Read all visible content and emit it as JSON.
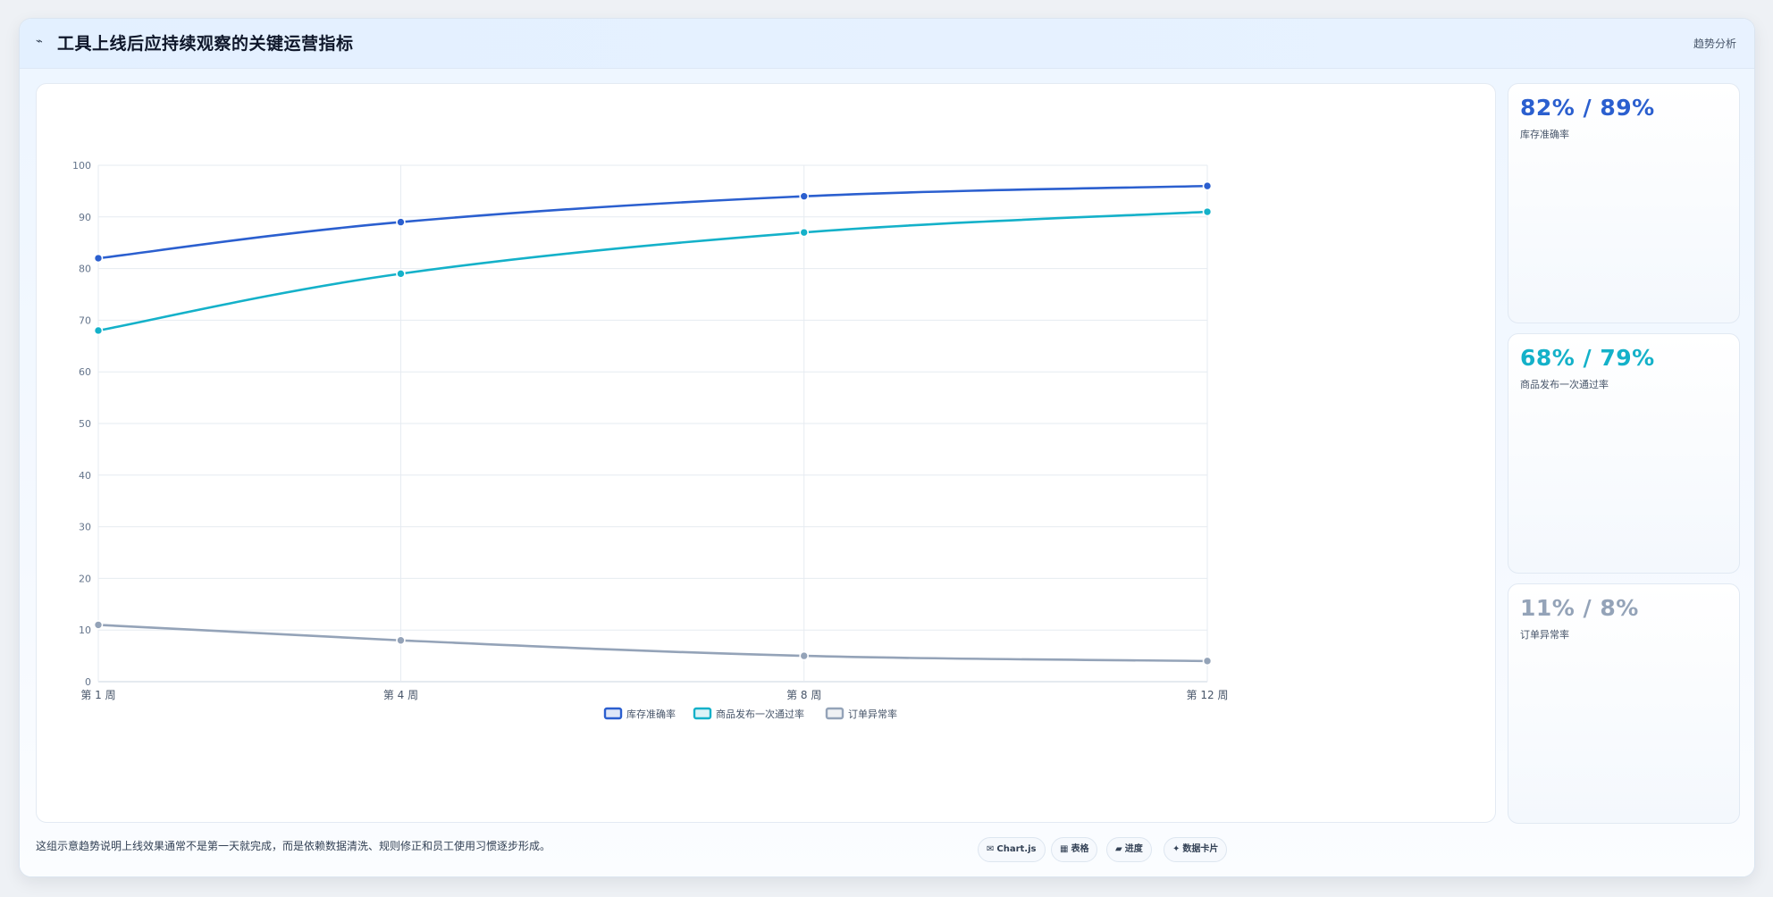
{
  "header": {
    "icon": "chart-line-icon",
    "title": "工具上线后应持续观察的关键运营指标",
    "right_label": "趋势分析"
  },
  "colors": {
    "blue": "#2b5fcf",
    "cyan": "#14b1c9",
    "gray": "#94a3b8"
  },
  "chart_data": {
    "type": "line",
    "categories": [
      "第 1 周",
      "第 4 周",
      "第 8 周",
      "第 12 周"
    ],
    "x": [
      1,
      4,
      8,
      12
    ],
    "series": [
      {
        "name": "库存准确率",
        "values": [
          82,
          89,
          94,
          96
        ],
        "color": "#2b5fcf"
      },
      {
        "name": "商品发布一次通过率",
        "values": [
          68,
          79,
          87,
          91
        ],
        "color": "#14b1c9"
      },
      {
        "name": "订单异常率",
        "values": [
          11,
          8,
          5,
          4
        ],
        "color": "#94a3b8"
      }
    ],
    "ylim": [
      0,
      100
    ],
    "yticks": [
      0,
      10,
      20,
      30,
      40,
      50,
      60,
      70,
      80,
      90,
      100
    ],
    "grid": true,
    "legend_position": "bottom",
    "title": "",
    "xlabel": "",
    "ylabel": ""
  },
  "side_cards": [
    {
      "value": "82% / 89%",
      "label": "库存准确率",
      "color": "#2b5fcf"
    },
    {
      "value": "68% / 79%",
      "label": "商品发布一次通过率",
      "color": "#14b1c9"
    },
    {
      "value": "11% / 8%",
      "label": "订单异常率",
      "color": "#94a3b8"
    }
  ],
  "footer": {
    "note": "这组示意趋势说明上线效果通常不是第一天就完成，而是依赖数据清洗、规则修正和员工使用习惯逐步形成。",
    "chips": [
      {
        "icon": "✉",
        "icon_name": "chart-icon",
        "label": "Chart.js"
      },
      {
        "icon": "▦",
        "icon_name": "table-icon",
        "label": "表格"
      },
      {
        "icon": "▰",
        "icon_name": "progress-icon",
        "label": "进度"
      },
      {
        "icon": "✦",
        "icon_name": "card-icon",
        "label": "数据卡片"
      }
    ]
  }
}
